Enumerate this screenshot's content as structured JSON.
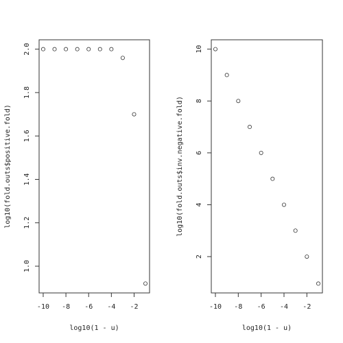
{
  "chart_data": [
    {
      "type": "scatter",
      "x": [
        -10,
        -9,
        -8,
        -7,
        -6,
        -5,
        -4,
        -3,
        -2,
        -1
      ],
      "values": [
        2.0,
        2.0,
        2.0,
        2.0,
        2.0,
        2.0,
        2.0,
        1.96,
        1.7,
        0.92
      ],
      "x_label": "log10(1 - u)",
      "y_label": "log10(fold.outs$positive.fold)",
      "xlim": [
        -10.36,
        -0.64
      ],
      "xticks": [
        -10,
        -8,
        -6,
        -4,
        -2
      ],
      "ylim": [
        0.8768,
        2.0432
      ],
      "yticks": [
        {
          "value": 1.0,
          "label": "1.0"
        },
        1.2,
        1.4,
        1.6,
        1.8,
        {
          "value": 2.0,
          "label": "2.0"
        }
      ],
      "color": "#333333"
    },
    {
      "type": "scatter",
      "x": [
        -10,
        -9,
        -8,
        -7,
        -6,
        -5,
        -4,
        -3,
        -2,
        -1
      ],
      "values": [
        10,
        9,
        8,
        7,
        6,
        5,
        4,
        3,
        2,
        0.96
      ],
      "x_label": "log10(1 - u)",
      "y_label": "log10(fold.outs$inv.negative.fold)",
      "xlim": [
        -10.36,
        -0.64
      ],
      "xticks": [
        -10,
        -8,
        -6,
        -4,
        -2
      ],
      "ylim": [
        0.6,
        10.36
      ],
      "yticks": [
        2,
        4,
        6,
        8,
        10
      ],
      "color": "#333333"
    }
  ]
}
